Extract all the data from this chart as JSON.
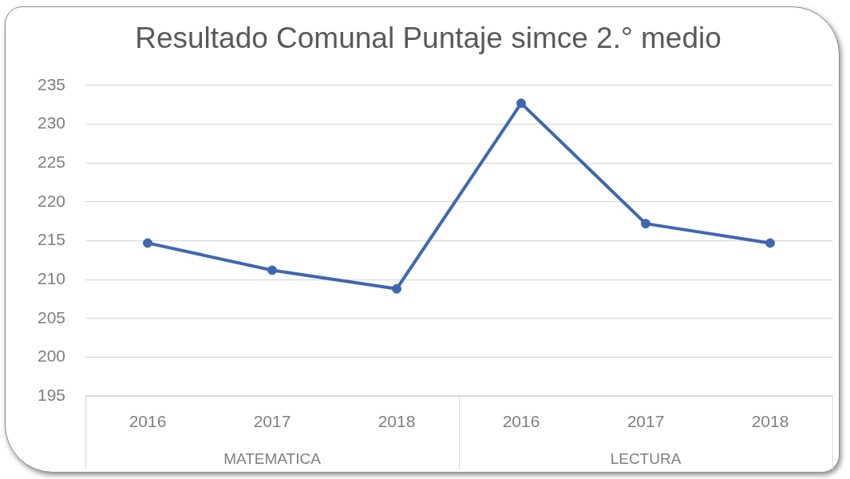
{
  "chart_data": {
    "type": "line",
    "title": "Resultado Comunal Puntaje simce 2.° medio",
    "categories": [
      "2016",
      "2017",
      "2018",
      "2016",
      "2017",
      "2018"
    ],
    "values": [
      214.7,
      211.2,
      208.8,
      232.7,
      217.2,
      214.7
    ],
    "color": "#3f67b0",
    "ylim": [
      195,
      235
    ],
    "yticks": [
      195,
      200,
      205,
      210,
      215,
      220,
      225,
      230,
      235
    ],
    "grid": "y",
    "marker": "circle",
    "line_style": "solid",
    "annotations": [
      "MATEMATICA",
      "LECTURA"
    ]
  }
}
